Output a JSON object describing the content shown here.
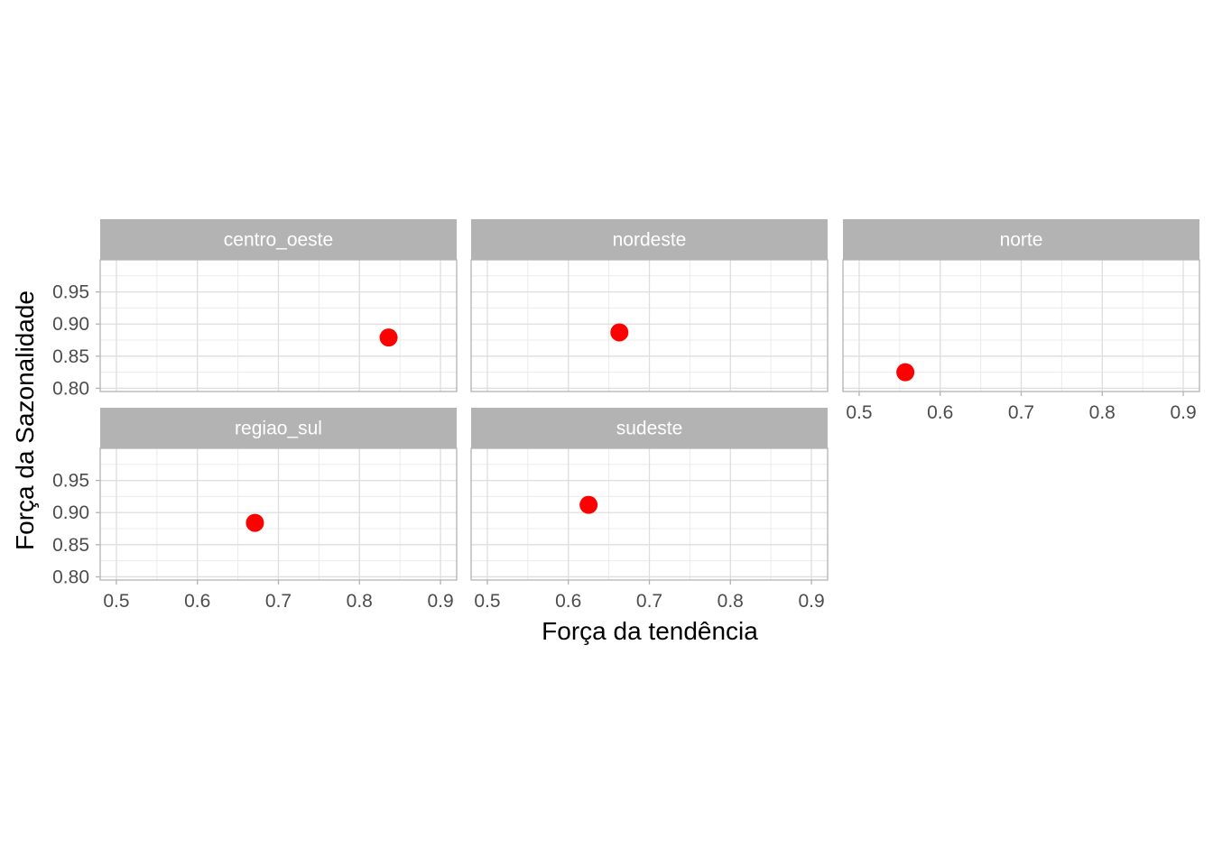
{
  "chart_data": {
    "type": "scatter",
    "layout": "facet_wrap",
    "xlabel": "Força da tendência",
    "ylabel": "Força da Sazonalidade",
    "xlim": [
      0.48,
      0.92
    ],
    "ylim": [
      0.795,
      1.0
    ],
    "x_ticks": [
      "0.5",
      "0.6",
      "0.7",
      "0.8",
      "0.9"
    ],
    "y_ticks": [
      "0.80",
      "0.85",
      "0.90",
      "0.95"
    ],
    "grid": true,
    "point_color": "#ff0000",
    "strip_color": "#b3b3b3",
    "panels": [
      {
        "name": "centro_oeste",
        "x": 0.836,
        "y": 0.879
      },
      {
        "name": "nordeste",
        "x": 0.663,
        "y": 0.887
      },
      {
        "name": "norte",
        "x": 0.557,
        "y": 0.825
      },
      {
        "name": "regiao_sul",
        "x": 0.671,
        "y": 0.884
      },
      {
        "name": "sudeste",
        "x": 0.625,
        "y": 0.912
      }
    ]
  }
}
